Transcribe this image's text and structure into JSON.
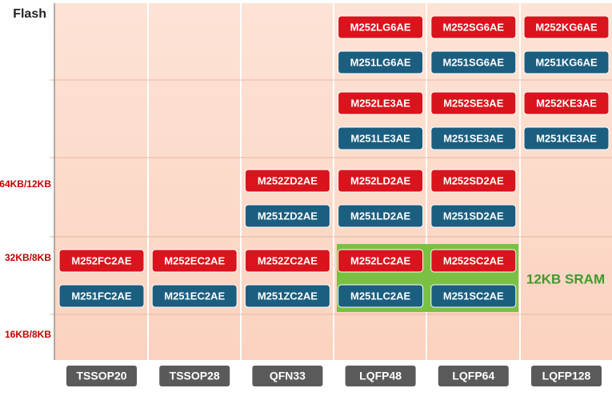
{
  "y_labels": [
    "Flash",
    "64KB/12KB",
    "32KB/8KB",
    "16KB/8KB"
  ],
  "packages": [
    "TSSOP20",
    "TSSOP28",
    "QFN33",
    "LQFP48",
    "LQFP64",
    "LQFP128"
  ],
  "rows": [
    [
      null,
      null,
      null,
      [
        "M252LG6AE",
        "M251LG6AE"
      ],
      [
        "M252SG6AE",
        "M251SG6AE"
      ],
      [
        "M252KG6AE",
        "M251KG6AE"
      ]
    ],
    [
      null,
      null,
      null,
      [
        "M252LE3AE",
        "M251LE3AE"
      ],
      [
        "M252SE3AE",
        "M251SE3AE"
      ],
      [
        "M252KE3AE",
        "M251KE3AE"
      ]
    ],
    [
      null,
      null,
      [
        "M252ZD2AE",
        "M251ZD2AE"
      ],
      [
        "M252LD2AE",
        "M251LD2AE"
      ],
      [
        "M252SD2AE",
        "M251SD2AE"
      ],
      null
    ],
    [
      [
        "M252FC2AE",
        "M251FC2AE"
      ],
      [
        "M252EC2AE",
        "M251EC2AE"
      ],
      [
        "M252ZC2AE",
        "M251ZC2AE"
      ],
      [
        "M252LC2AE",
        "M251LC2AE"
      ],
      [
        "M252SC2AE",
        "M251SC2AE"
      ],
      null
    ]
  ],
  "note": "12KB SRAM"
}
